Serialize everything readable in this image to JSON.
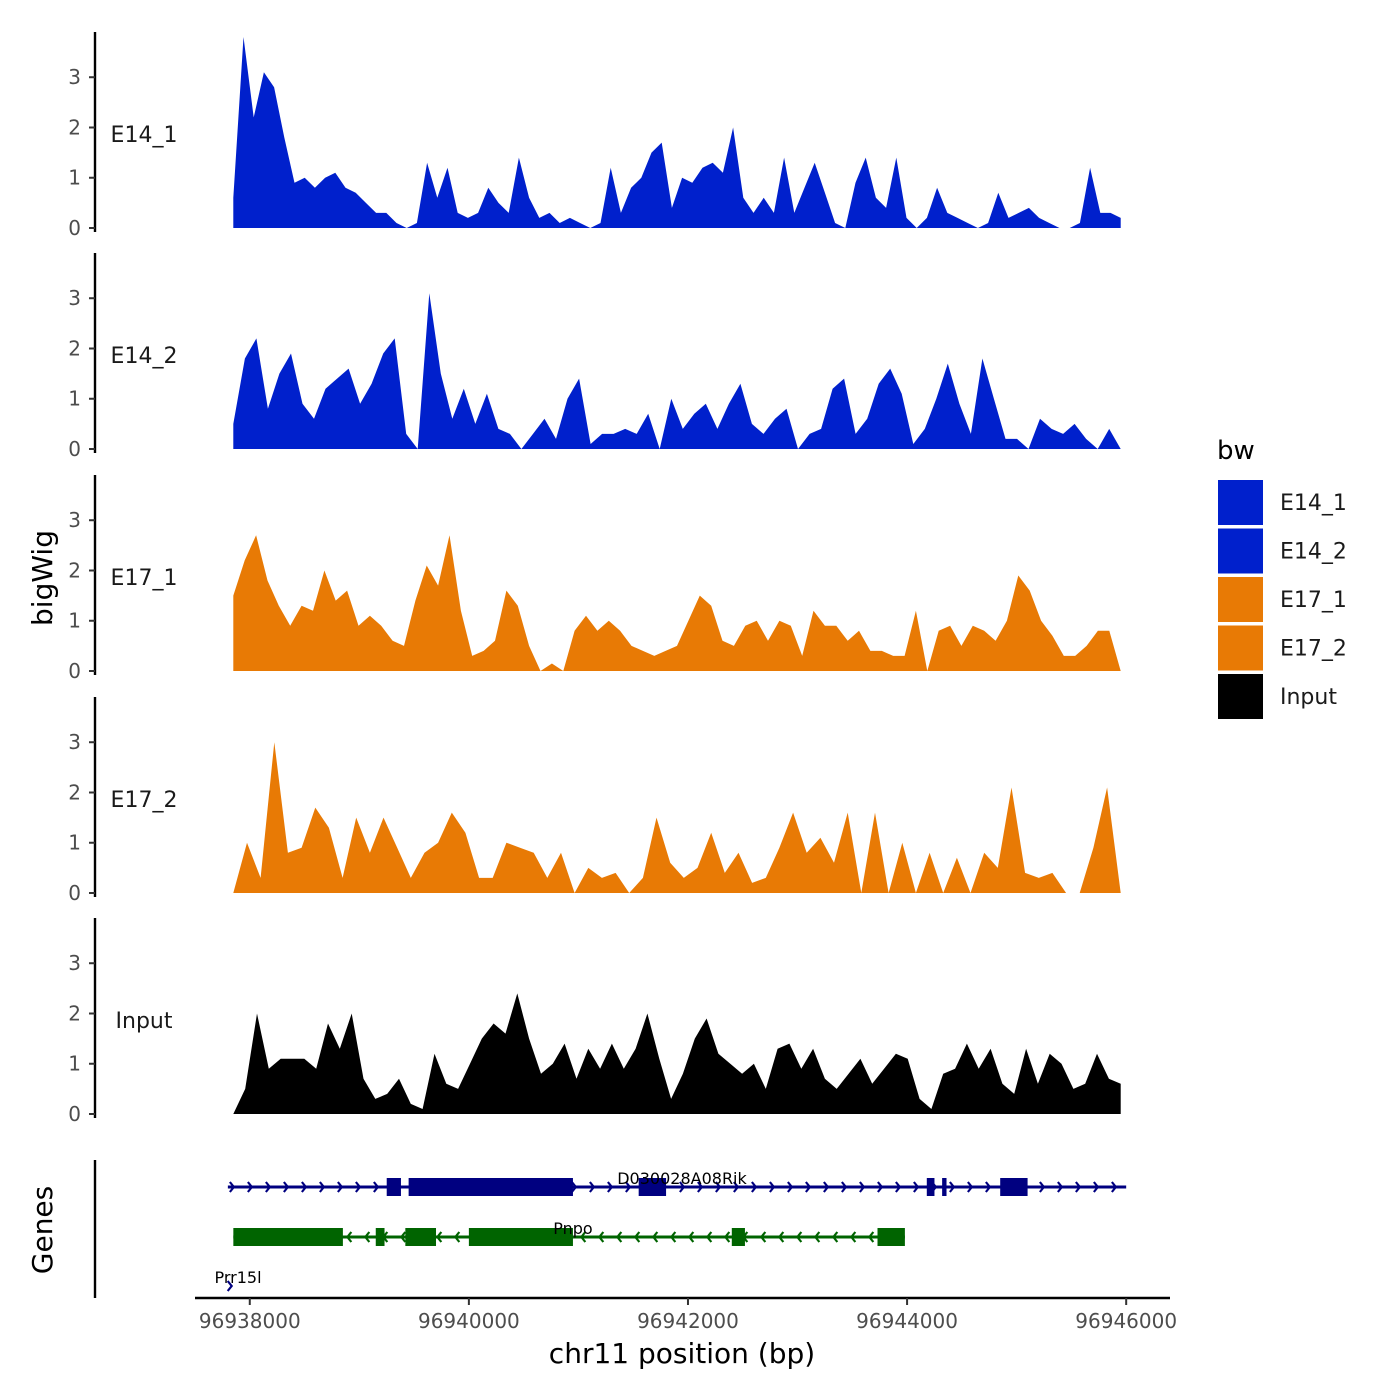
{
  "chart_data": {
    "type": "area",
    "title": "",
    "ylabel": "bigWig",
    "genes_label": "Genes",
    "xlabel": "chr11 position (bp)",
    "xlim": [
      96937500,
      96946400
    ],
    "data_xrange": [
      96937850,
      96945950
    ],
    "ylim": [
      0,
      3.9
    ],
    "y_ticks": [
      0,
      1,
      2,
      3
    ],
    "x_ticks": [
      96938000,
      96940000,
      96942000,
      96944000,
      96946000
    ],
    "x_tick_labels": [
      "96938000",
      "96940000",
      "96942000",
      "96944000",
      "96946000"
    ],
    "legend": {
      "title": "bw",
      "position": "right",
      "entries": [
        {
          "label": "E14_1",
          "color": "#0020CC"
        },
        {
          "label": "E14_2",
          "color": "#0020CC"
        },
        {
          "label": "E17_1",
          "color": "#E87A05"
        },
        {
          "label": "E17_2",
          "color": "#E87A05"
        },
        {
          "label": "Input",
          "color": "#000000"
        }
      ]
    },
    "tracks": [
      {
        "name": "E14_1",
        "color": "#0020CC",
        "values": [
          0.6,
          3.8,
          2.2,
          3.1,
          2.8,
          1.8,
          0.9,
          1.0,
          0.8,
          1.0,
          1.1,
          0.8,
          0.7,
          0.5,
          0.3,
          0.3,
          0.1,
          0.0,
          0.1,
          1.3,
          0.6,
          1.2,
          0.3,
          0.2,
          0.3,
          0.8,
          0.5,
          0.3,
          1.4,
          0.6,
          0.2,
          0.3,
          0.1,
          0.2,
          0.1,
          0.0,
          0.1,
          1.2,
          0.3,
          0.8,
          1.0,
          1.5,
          1.7,
          0.4,
          1.0,
          0.9,
          1.2,
          1.3,
          1.1,
          2.0,
          0.6,
          0.3,
          0.6,
          0.3,
          1.4,
          0.3,
          0.8,
          1.3,
          0.7,
          0.1,
          0.0,
          0.9,
          1.4,
          0.6,
          0.4,
          1.4,
          0.2,
          0.0,
          0.2,
          0.8,
          0.3,
          0.2,
          0.1,
          0.0,
          0.1,
          0.7,
          0.2,
          0.3,
          0.4,
          0.2,
          0.1,
          0.0,
          0.0,
          0.1,
          1.2,
          0.3,
          0.3,
          0.2
        ]
      },
      {
        "name": "E14_2",
        "color": "#0020CC",
        "values": [
          0.5,
          1.8,
          2.2,
          0.8,
          1.5,
          1.9,
          0.9,
          0.6,
          1.2,
          1.4,
          1.6,
          0.9,
          1.3,
          1.9,
          2.2,
          0.3,
          0.0,
          3.1,
          1.5,
          0.6,
          1.2,
          0.5,
          1.1,
          0.4,
          0.3,
          0.0,
          0.3,
          0.6,
          0.2,
          1.0,
          1.4,
          0.1,
          0.3,
          0.3,
          0.4,
          0.3,
          0.7,
          0.0,
          1.0,
          0.4,
          0.7,
          0.9,
          0.4,
          0.9,
          1.3,
          0.5,
          0.3,
          0.6,
          0.8,
          0.0,
          0.3,
          0.4,
          1.2,
          1.4,
          0.3,
          0.6,
          1.3,
          1.6,
          1.1,
          0.1,
          0.4,
          1.0,
          1.7,
          0.9,
          0.3,
          1.8,
          1.0,
          0.2,
          0.2,
          0.0,
          0.6,
          0.4,
          0.3,
          0.5,
          0.2,
          0.0,
          0.4,
          0.0
        ]
      },
      {
        "name": "E17_1",
        "color": "#E87A05",
        "values": [
          1.5,
          2.2,
          2.7,
          1.8,
          1.3,
          0.9,
          1.3,
          1.2,
          2.0,
          1.4,
          1.6,
          0.9,
          1.1,
          0.9,
          0.6,
          0.5,
          1.4,
          2.1,
          1.7,
          2.7,
          1.2,
          0.3,
          0.4,
          0.6,
          1.6,
          1.3,
          0.5,
          0.0,
          0.15,
          0.0,
          0.8,
          1.1,
          0.8,
          1.0,
          0.8,
          0.5,
          0.4,
          0.3,
          0.4,
          0.5,
          1.0,
          1.5,
          1.3,
          0.6,
          0.5,
          0.9,
          1.0,
          0.6,
          1.0,
          0.9,
          0.3,
          1.2,
          0.9,
          0.9,
          0.6,
          0.8,
          0.4,
          0.4,
          0.3,
          0.3,
          1.2,
          0.0,
          0.8,
          0.9,
          0.5,
          0.9,
          0.8,
          0.6,
          1.0,
          1.9,
          1.6,
          1.0,
          0.7,
          0.3,
          0.3,
          0.5,
          0.8,
          0.8,
          0.0
        ]
      },
      {
        "name": "E17_2",
        "color": "#E87A05",
        "values": [
          0.0,
          1.0,
          0.3,
          3.0,
          0.8,
          0.9,
          1.7,
          1.3,
          0.3,
          1.5,
          0.8,
          1.5,
          0.9,
          0.3,
          0.8,
          1.0,
          1.6,
          1.2,
          0.3,
          0.3,
          1.0,
          0.9,
          0.8,
          0.3,
          0.8,
          0.0,
          0.5,
          0.3,
          0.4,
          0.0,
          0.3,
          1.5,
          0.6,
          0.3,
          0.5,
          1.2,
          0.4,
          0.8,
          0.2,
          0.3,
          0.9,
          1.6,
          0.8,
          1.1,
          0.6,
          1.6,
          0.0,
          1.6,
          0.0,
          1.0,
          0.0,
          0.8,
          0.0,
          0.7,
          0.0,
          0.8,
          0.5,
          2.1,
          0.4,
          0.3,
          0.4,
          0.0,
          0.0,
          0.9,
          2.1,
          0.0
        ]
      },
      {
        "name": "Input",
        "color": "#000000",
        "values": [
          0.0,
          0.5,
          2.0,
          0.9,
          1.1,
          1.1,
          1.1,
          0.9,
          1.8,
          1.3,
          2.0,
          0.7,
          0.3,
          0.4,
          0.7,
          0.2,
          0.1,
          1.2,
          0.6,
          0.5,
          1.0,
          1.5,
          1.8,
          1.6,
          2.4,
          1.5,
          0.8,
          1.0,
          1.4,
          0.7,
          1.3,
          0.9,
          1.4,
          0.9,
          1.3,
          2.0,
          1.1,
          0.3,
          0.8,
          1.5,
          1.9,
          1.2,
          1.0,
          0.8,
          1.0,
          0.5,
          1.3,
          1.4,
          0.9,
          1.3,
          0.7,
          0.5,
          0.8,
          1.1,
          0.6,
          0.9,
          1.2,
          1.1,
          0.3,
          0.1,
          0.8,
          0.9,
          1.4,
          0.9,
          1.3,
          0.6,
          0.4,
          1.3,
          0.6,
          1.2,
          1.0,
          0.5,
          0.6,
          1.2,
          0.7,
          0.6
        ]
      }
    ],
    "genes": [
      {
        "name": "D030028A08Rik",
        "strand": "+",
        "color": "#000080",
        "start": 96937800,
        "end": 96946000,
        "exons": [
          [
            96939250,
            96939380
          ],
          [
            96939450,
            96940950
          ],
          [
            96941550,
            96941800
          ],
          [
            96944180,
            96944250
          ],
          [
            96944320,
            96944360
          ],
          [
            96944850,
            96945100
          ]
        ]
      },
      {
        "name": "Pnpo",
        "strand": "-",
        "color": "#006400",
        "start": 96937850,
        "end": 96943980,
        "exons": [
          [
            96937850,
            96938850
          ],
          [
            96939150,
            96939230
          ],
          [
            96939420,
            96939700
          ],
          [
            96940000,
            96940950
          ],
          [
            96942400,
            96942520
          ],
          [
            96943730,
            96943980
          ]
        ]
      },
      {
        "name": "Prr15l",
        "strand": "+",
        "color": "#000080",
        "start": 96937780,
        "end": 96937850,
        "exons": []
      }
    ]
  }
}
